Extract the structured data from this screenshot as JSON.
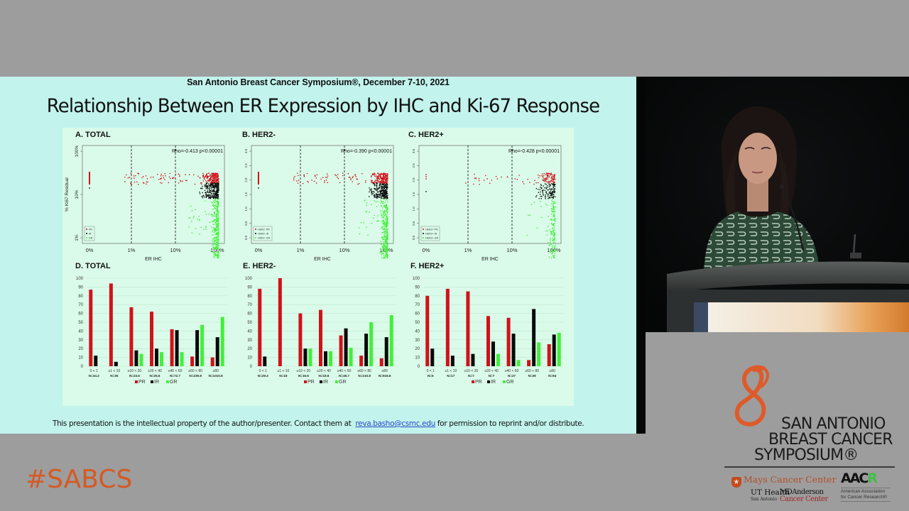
{
  "slide": {
    "conference_line": "San Antonio Breast Cancer Symposium®, December 7-10, 2021",
    "title": "Relationship Between ER Expression by IHC and Ki-67 Response",
    "footer_text_before": "This presentation is the intellectual property of the author/presenter. Contact them at",
    "footer_email": "reva.basho@csmc.edu",
    "footer_text_after": "for permission to reprint and/or distribute."
  },
  "branding": {
    "hashtag": "#SABCS",
    "sabcs_lines": [
      "SAN ANTONIO",
      "BREAST CANCER",
      "SYMPOSIUM®"
    ],
    "mays": "Mays Cancer Center",
    "ut_health": "UT Health",
    "ut_health_sub": "San Antonio",
    "md_anderson": "MDAnderson",
    "md_anderson_sub": "Cancer Center",
    "aacr_mark_main": "AAC",
    "aacr_mark_r": "R",
    "aacr_line1": "American Association",
    "aacr_line2": "for Cancer Research®",
    "accent_color": "#d45a24"
  },
  "video": {
    "description": "Presenter speaking at podium"
  },
  "colors": {
    "PR": "#d0121b",
    "IR": "#0a0a0a",
    "GR": "#43ef3a",
    "slide_bg": "#c2f3ed",
    "figure_bg": "#dafbe9"
  },
  "chart_data": [
    {
      "type": "scatter",
      "title": "A. TOTAL",
      "xlabel": "ER IHC",
      "ylabel": "% Ki67 Residual",
      "x_ticks": [
        "0%",
        "1%",
        "10%",
        "100%"
      ],
      "y_ticks": [
        "1%",
        "10%",
        "100%"
      ],
      "annotation": "Rho=-0.413 p<0.00001",
      "legend": [
        "PR",
        "IR",
        "GR"
      ],
      "vlines_dashed": [
        "1%",
        "10%"
      ]
    },
    {
      "type": "scatter",
      "title": "B. HER2-",
      "xlabel": "ER IHC",
      "ylabel": "",
      "x_ticks": [
        "0%",
        "1%",
        "10%",
        "100%"
      ],
      "y_ticks": [
        "0.0",
        "0.5",
        "1.0",
        "1.5",
        "2.0",
        "2.5",
        "3.0"
      ],
      "annotation": "Rho=-0.390 p<0.00001",
      "legend": [
        "HER2- PR",
        "HER2- IR",
        "HER2- GR"
      ],
      "vlines_dashed": [
        "1%",
        "10%"
      ]
    },
    {
      "type": "scatter",
      "title": "C. HER2+",
      "xlabel": "ER IHC",
      "ylabel": "",
      "x_ticks": [
        "0%",
        "1%",
        "10%",
        "100%"
      ],
      "y_ticks": [
        "0.0",
        "0.5",
        "1.0",
        "1.5",
        "2.0",
        "2.5",
        "3.0"
      ],
      "annotation": "Rho=-0.428 p<0.00001",
      "legend": [
        "HER2+ PR",
        "HER2+ IR",
        "HER2+ GR"
      ],
      "vlines_dashed": [
        "1%",
        "10%"
      ]
    },
    {
      "type": "bar",
      "title": "D. TOTAL",
      "categories": [
        "0 < 1",
        "≥1 < 10",
        "≥10 < 20",
        "≥20 < 40",
        "≥40 < 60",
        "≥60 < 80",
        "≥80"
      ],
      "n_labels": [
        "N=34.3",
        "N=35",
        "N=23.6",
        "N=25.6",
        "N=72.7",
        "N=239.8",
        "N=1010.6"
      ],
      "series": [
        {
          "name": "PR",
          "values": [
            87,
            94,
            67,
            62,
            42,
            11,
            10
          ]
        },
        {
          "name": "IR",
          "values": [
            12,
            5,
            18,
            20,
            41,
            41,
            33
          ]
        },
        {
          "name": "GR",
          "values": [
            0,
            0,
            14,
            16,
            16,
            47,
            56
          ]
        }
      ],
      "y_ticks": [
        0,
        10,
        20,
        30,
        40,
        50,
        60,
        70,
        80,
        90,
        100
      ],
      "ylim": [
        0,
        100
      ],
      "legend": [
        "PR",
        "IR",
        "GR"
      ],
      "grid": true
    },
    {
      "type": "bar",
      "title": "E. HER2-",
      "categories": [
        "0 < 1",
        "≥1 < 10",
        "≥10 < 20",
        "≥20 < 40",
        "≥40 < 60",
        "≥60 < 80",
        "≥80"
      ],
      "n_labels": [
        "N=29.3",
        "N=18",
        "N=16.6",
        "N=18.6",
        "N=45.7",
        "N=210.8",
        "N=916.6"
      ],
      "series": [
        {
          "name": "PR",
          "values": [
            88,
            100,
            60,
            64,
            35,
            12,
            9
          ]
        },
        {
          "name": "IR",
          "values": [
            11,
            0,
            20,
            17,
            43,
            37,
            33
          ]
        },
        {
          "name": "GR",
          "values": [
            0,
            0,
            20,
            17,
            21,
            50,
            58
          ]
        }
      ],
      "y_ticks": [
        0,
        10,
        20,
        30,
        40,
        50,
        60,
        70,
        80,
        90,
        100
      ],
      "ylim": [
        0,
        100
      ],
      "legend": [
        "PR",
        "IR",
        "GR"
      ],
      "grid": true
    },
    {
      "type": "bar",
      "title": "F. HER2+",
      "categories": [
        "0 < 1",
        "≥1 < 10",
        "≥10 < 20",
        "≥20 < 40",
        "≥40 < 60",
        "≥60 < 80",
        "≥80"
      ],
      "n_labels": [
        "N=5",
        "N=17",
        "N=7",
        "N=7",
        "N=27",
        "N=29",
        "N=94"
      ],
      "series": [
        {
          "name": "PR",
          "values": [
            80,
            88,
            85,
            57,
            55,
            7,
            25
          ]
        },
        {
          "name": "IR",
          "values": [
            20,
            12,
            14,
            28,
            37,
            65,
            36
          ]
        },
        {
          "name": "GR",
          "values": [
            0,
            0,
            0,
            14,
            7,
            27,
            38
          ]
        }
      ],
      "y_ticks": [
        0,
        10,
        20,
        30,
        40,
        50,
        60,
        70,
        80,
        90,
        100
      ],
      "ylim": [
        0,
        100
      ],
      "legend": [
        "PR",
        "IR",
        "GR"
      ],
      "grid": true
    }
  ]
}
